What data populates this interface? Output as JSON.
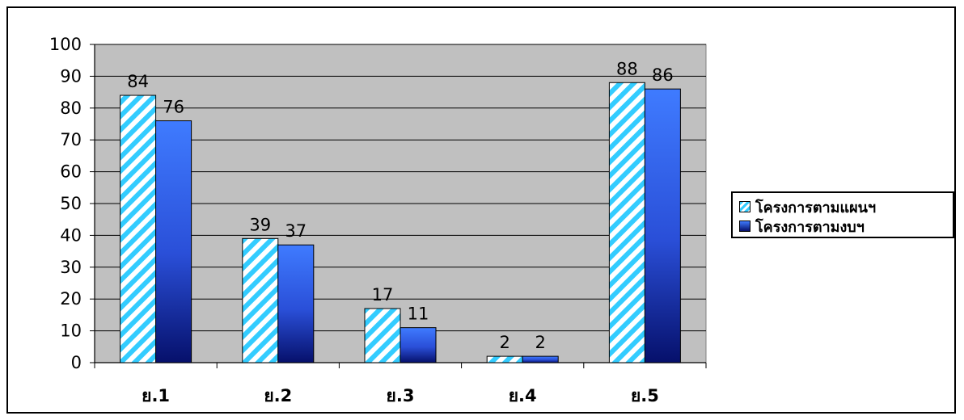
{
  "chart_data": {
    "type": "bar",
    "title": "",
    "xlabel": "",
    "ylabel": "",
    "categories": [
      "ย.1",
      "ย.2",
      "ย.3",
      "ย.4",
      "ย.5"
    ],
    "series": [
      {
        "name": "โครงการตามแผนฯ",
        "values": [
          84,
          39,
          17,
          2,
          88
        ],
        "pattern": "cyan-diagonal-stripes",
        "color": "#33ccff"
      },
      {
        "name": "โครงการตามงบฯ",
        "values": [
          76,
          37,
          11,
          2,
          86
        ],
        "pattern": "blue-vertical-gradient",
        "color": "#3366ff"
      }
    ],
    "ylim": [
      0,
      100
    ],
    "yticks": [
      0,
      10,
      20,
      30,
      40,
      50,
      60,
      70,
      80,
      90,
      100
    ],
    "grid": true,
    "plot_background": "#c0c0c0",
    "legend_position": "right",
    "data_labels": true
  }
}
